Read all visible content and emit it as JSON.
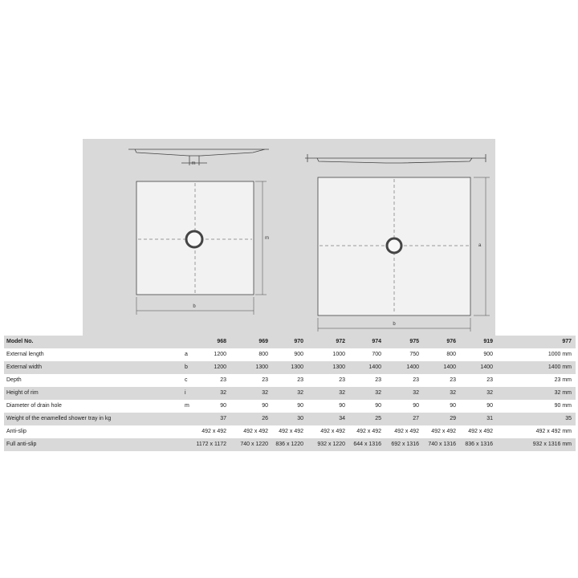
{
  "diagram": {
    "left": {
      "drain_label": "m",
      "width_label": "b",
      "side_label": "m"
    },
    "right": {
      "width_label": "b",
      "side_label": "a"
    }
  },
  "table": {
    "header": {
      "label": "Model No.",
      "cells": [
        "968",
        "969",
        "970",
        "972",
        "974",
        "975",
        "976",
        "919",
        "977"
      ]
    },
    "rows": [
      {
        "label": "External length",
        "code": "a",
        "cells": [
          "1200",
          "800",
          "900",
          "1000",
          "700",
          "750",
          "800",
          "900",
          "1000 mm"
        ]
      },
      {
        "label": "External width",
        "code": "b",
        "cells": [
          "1200",
          "1300",
          "1300",
          "1300",
          "1400",
          "1400",
          "1400",
          "1400",
          "1400 mm"
        ]
      },
      {
        "label": "Depth",
        "code": "c",
        "cells": [
          "23",
          "23",
          "23",
          "23",
          "23",
          "23",
          "23",
          "23",
          "23 mm"
        ]
      },
      {
        "label": "Height of rim",
        "code": "i",
        "cells": [
          "32",
          "32",
          "32",
          "32",
          "32",
          "32",
          "32",
          "32",
          "32 mm"
        ]
      },
      {
        "label": "Diameter of drain hole",
        "code": "m",
        "cells": [
          "90",
          "90",
          "90",
          "90",
          "90",
          "90",
          "90",
          "90",
          "90 mm"
        ]
      },
      {
        "label": "Weight of the enamelled shower tray in kg",
        "cells": [
          "37",
          "26",
          "30",
          "34",
          "25",
          "27",
          "29",
          "31",
          "35"
        ]
      },
      {
        "label": "Anti-slip",
        "cells": [
          "492 x 492",
          "492 x 492",
          "492 x 492",
          "492 x 492",
          "492 x 492",
          "492 x 492",
          "492 x 492",
          "492 x 492",
          "492 x 492 mm"
        ]
      },
      {
        "label": "Full anti-slip",
        "cells": [
          "1172 x 1172",
          "740 x 1220",
          "836 x 1220",
          "932 x 1220",
          "644 x 1316",
          "692 x 1316",
          "740 x 1316",
          "836 x 1316",
          "932 x 1316 mm"
        ]
      }
    ]
  }
}
